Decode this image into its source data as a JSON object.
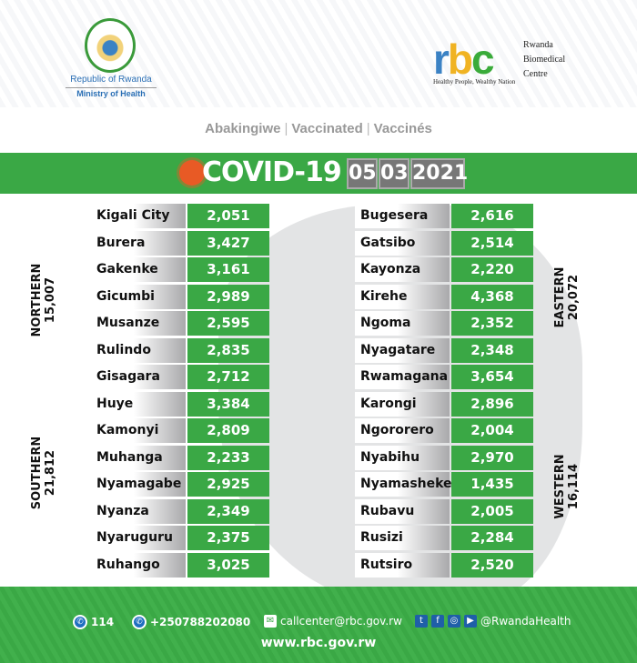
{
  "header": {
    "left_logo": {
      "line1": "Republic of Rwanda",
      "line2": "Ministry of Health"
    },
    "right_logo": {
      "mark": "rbc",
      "name_lines": [
        "Rwanda",
        "Biomedical",
        "Centre"
      ],
      "tagline": "Healthy People, Wealthy Nation"
    }
  },
  "subtitle": {
    "items": [
      "Abakingiwe",
      "Vaccinated",
      "Vaccinés"
    ]
  },
  "banner": {
    "title": "COVID-19",
    "date": {
      "day": "05",
      "month": "03",
      "year": "2021"
    }
  },
  "colors": {
    "green": "#3aa845",
    "grey": "#777777",
    "virus": "#e85a25"
  },
  "regions": [
    {
      "name": "NORTHERN",
      "total": "15,007"
    },
    {
      "name": "SOUTHERN",
      "total": "21,812"
    },
    {
      "name": "EASTERN",
      "total": "20,072"
    },
    {
      "name": "WESTERN",
      "total": "16,114"
    }
  ],
  "left_districts": [
    {
      "name": "Kigali City",
      "value": "2,051"
    },
    {
      "name": "Burera",
      "value": "3,427"
    },
    {
      "name": "Gakenke",
      "value": "3,161"
    },
    {
      "name": "Gicumbi",
      "value": "2,989"
    },
    {
      "name": "Musanze",
      "value": "2,595"
    },
    {
      "name": "Rulindo",
      "value": "2,835"
    },
    {
      "name": "Gisagara",
      "value": "2,712"
    },
    {
      "name": "Huye",
      "value": "3,384"
    },
    {
      "name": "Kamonyi",
      "value": "2,809"
    },
    {
      "name": "Muhanga",
      "value": "2,233"
    },
    {
      "name": "Nyamagabe",
      "value": "2,925"
    },
    {
      "name": "Nyanza",
      "value": "2,349"
    },
    {
      "name": "Nyaruguru",
      "value": "2,375"
    },
    {
      "name": "Ruhango",
      "value": "3,025"
    }
  ],
  "right_districts": [
    {
      "name": "Bugesera",
      "value": "2,616"
    },
    {
      "name": "Gatsibo",
      "value": "2,514"
    },
    {
      "name": "Kayonza",
      "value": "2,220"
    },
    {
      "name": "Kirehe",
      "value": "4,368"
    },
    {
      "name": "Ngoma",
      "value": "2,352"
    },
    {
      "name": "Nyagatare",
      "value": "2,348"
    },
    {
      "name": "Rwamagana",
      "value": "3,654"
    },
    {
      "name": "Karongi",
      "value": "2,896"
    },
    {
      "name": "Ngororero",
      "value": "2,004"
    },
    {
      "name": "Nyabihu",
      "value": "2,970"
    },
    {
      "name": "Nyamasheke",
      "value": "1,435"
    },
    {
      "name": "Rubavu",
      "value": "2,005"
    },
    {
      "name": "Rusizi",
      "value": "2,284"
    },
    {
      "name": "Rutsiro",
      "value": "2,520"
    }
  ],
  "footer": {
    "hotline": "114",
    "whatsapp": "+250788202080",
    "email": "callcenter@rbc.gov.rw",
    "social_icons": [
      "twitter-icon",
      "facebook-icon",
      "instagram-icon",
      "youtube-icon"
    ],
    "social_handle": "@RwandaHealth",
    "website": "www.rbc.gov.rw"
  }
}
